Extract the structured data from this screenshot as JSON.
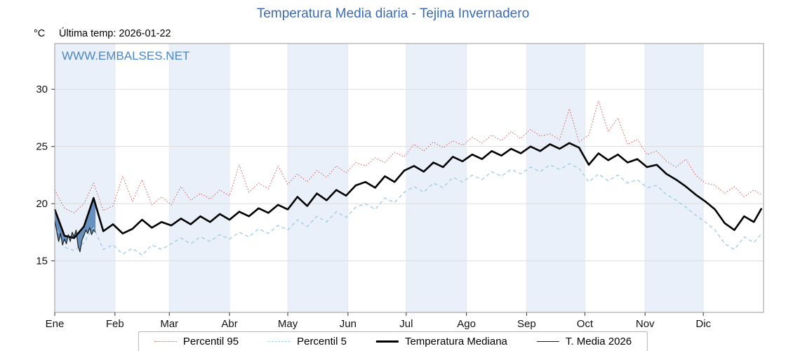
{
  "colors": {
    "title": "#3a6bb8",
    "watermark": "#4a86c8",
    "band": "#e9f0f9",
    "grid": "#dcdcdc",
    "grid_v": "#e6e9ee",
    "border": "#9a9a9a",
    "tick": "#333333",
    "label": "#111111",
    "fill": "#4d7fb5"
  },
  "chart_data": {
    "type": "line",
    "title": "Temperatura Media diaria - Tejina Invernadero",
    "unit_label": "°C",
    "last_temp_label": "Última temp: 2026-01-22",
    "watermark": "WWW.EMBALSES.NET",
    "x_axis": {
      "months": [
        "Ene",
        "Feb",
        "Mar",
        "Abr",
        "May",
        "Jun",
        "Jul",
        "Ago",
        "Sep",
        "Oct",
        "Nov",
        "Dic"
      ],
      "month_start_days": [
        0,
        31,
        59,
        90,
        120,
        151,
        181,
        212,
        243,
        273,
        304,
        334
      ],
      "days_in_year": 365
    },
    "y_axis": {
      "ticks": [
        15,
        20,
        25,
        30
      ],
      "range": [
        10.5,
        34
      ]
    },
    "x_days": [
      0,
      5,
      10,
      15,
      20,
      25,
      30,
      35,
      40,
      45,
      50,
      55,
      60,
      65,
      70,
      75,
      80,
      85,
      90,
      95,
      100,
      105,
      110,
      115,
      120,
      125,
      130,
      135,
      140,
      145,
      150,
      155,
      160,
      165,
      170,
      175,
      180,
      185,
      190,
      195,
      200,
      205,
      210,
      215,
      220,
      225,
      230,
      235,
      240,
      245,
      250,
      255,
      260,
      265,
      270,
      275,
      280,
      285,
      290,
      295,
      300,
      305,
      310,
      315,
      320,
      325,
      330,
      335,
      340,
      345,
      350,
      355,
      360,
      364
    ],
    "series": [
      {
        "id": "percentil-95",
        "name": "Percentil 95",
        "color": "#d9534f",
        "style": "dotted",
        "width": 1,
        "y": [
          21.2,
          19.6,
          19.2,
          20.0,
          21.8,
          19.4,
          19.8,
          22.4,
          20.2,
          22.1,
          19.9,
          20.6,
          19.9,
          21.5,
          20.3,
          20.9,
          20.4,
          21.2,
          20.7,
          23.4,
          21.0,
          21.8,
          21.3,
          23.3,
          21.7,
          22.6,
          21.9,
          22.9,
          22.3,
          23.3,
          22.7,
          23.6,
          23.3,
          24.0,
          23.6,
          24.5,
          24.1,
          25.2,
          24.6,
          25.4,
          24.9,
          25.5,
          25.1,
          25.8,
          25.3,
          26.0,
          25.5,
          26.3,
          25.7,
          26.5,
          25.9,
          26.1,
          25.6,
          28.3,
          25.4,
          26.0,
          29.0,
          26.3,
          27.5,
          25.2,
          25.6,
          24.3,
          24.6,
          23.7,
          23.2,
          23.9,
          22.5,
          21.8,
          21.6,
          20.9,
          21.5,
          20.6,
          21.2,
          20.8
        ]
      },
      {
        "id": "percentil-5",
        "name": "Percentil 5",
        "color": "#9ecae1",
        "style": "dashed",
        "width": 1.3,
        "y": [
          18.2,
          16.2,
          15.9,
          16.6,
          17.9,
          16.0,
          16.4,
          15.6,
          16.1,
          15.5,
          16.4,
          16.0,
          16.5,
          17.0,
          16.5,
          17.1,
          16.7,
          17.3,
          16.9,
          17.5,
          17.1,
          17.8,
          17.4,
          18.1,
          17.7,
          18.6,
          18.0,
          18.9,
          18.4,
          19.3,
          18.8,
          19.7,
          20.0,
          19.5,
          20.5,
          20.1,
          21.0,
          21.5,
          21.0,
          21.8,
          21.4,
          22.3,
          21.9,
          22.5,
          22.1,
          22.8,
          22.4,
          23.0,
          22.6,
          23.2,
          22.8,
          23.4,
          23.0,
          23.5,
          23.1,
          21.9,
          22.6,
          22.0,
          22.5,
          21.8,
          22.1,
          21.4,
          21.6,
          20.8,
          20.3,
          19.7,
          19.0,
          18.4,
          17.7,
          16.5,
          16.0,
          17.1,
          16.6,
          17.4
        ]
      },
      {
        "id": "temperatura-mediana",
        "name": "Temperatura Mediana",
        "color": "#000000",
        "style": "solid",
        "width": 2.6,
        "y": [
          19.5,
          17.2,
          17.0,
          18.0,
          20.5,
          17.6,
          18.2,
          17.4,
          17.8,
          18.6,
          17.9,
          18.4,
          18.1,
          18.7,
          18.2,
          18.9,
          18.4,
          19.1,
          18.6,
          19.3,
          18.9,
          19.6,
          19.2,
          19.9,
          19.5,
          20.6,
          19.8,
          20.9,
          20.3,
          21.2,
          20.7,
          21.6,
          21.9,
          21.4,
          22.4,
          21.9,
          22.9,
          23.3,
          22.8,
          23.6,
          23.2,
          24.1,
          23.7,
          24.3,
          23.9,
          24.6,
          24.2,
          24.8,
          24.4,
          25.0,
          24.6,
          25.2,
          24.8,
          25.3,
          24.9,
          23.4,
          24.4,
          23.8,
          24.3,
          23.6,
          23.9,
          23.2,
          23.4,
          22.6,
          22.1,
          21.5,
          20.8,
          20.2,
          19.5,
          18.3,
          17.7,
          18.9,
          18.4,
          19.6
        ]
      },
      {
        "id": "t-media-2026",
        "name": "T. Media 2026",
        "color": "#1c1c1c",
        "style": "solid",
        "width": 1.2,
        "x": [
          0,
          1,
          2,
          3,
          4,
          5,
          6,
          7,
          8,
          9,
          10,
          11,
          12,
          13,
          14,
          15,
          16,
          17,
          18,
          19,
          20,
          21
        ],
        "y": [
          18.6,
          17.6,
          16.7,
          17.4,
          16.4,
          16.9,
          16.5,
          17.3,
          16.7,
          17.5,
          17.1,
          17.7,
          16.3,
          15.8,
          16.8,
          17.2,
          17.7,
          17.4,
          17.9,
          17.3,
          17.7,
          17.5
        ],
        "fill_to": "temperatura-mediana"
      }
    ],
    "legend": [
      "Percentil 95",
      "Percentil 5",
      "Temperatura Mediana",
      "T. Media 2026"
    ]
  }
}
